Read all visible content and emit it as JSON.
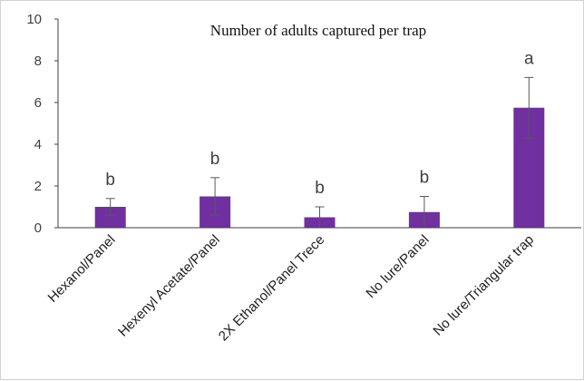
{
  "chart_data": {
    "type": "bar",
    "title": "Number of adults captured per trap",
    "xlabel": "",
    "ylabel": "",
    "ylim": [
      0,
      10
    ],
    "yticks": [
      "0",
      "2",
      "4",
      "6",
      "8",
      "10"
    ],
    "categories": [
      "Hexanol/Panel",
      "Hexenyl Acetate/Panel",
      "2X Ethanol/Panel Trece",
      "No lure/Panel",
      "No lure/Triangular trap"
    ],
    "values": [
      1.0,
      1.5,
      0.5,
      0.75,
      5.75
    ],
    "error_high": [
      1.4,
      2.4,
      1.0,
      1.5,
      7.2
    ],
    "error_low": [
      0.6,
      0.6,
      0.0,
      0.0,
      4.3
    ],
    "significance_letters": [
      "b",
      "b",
      "b",
      "b",
      "a"
    ],
    "bar_color": "#7030a0",
    "error_color": "#595959",
    "grid": false,
    "legend": "none"
  }
}
